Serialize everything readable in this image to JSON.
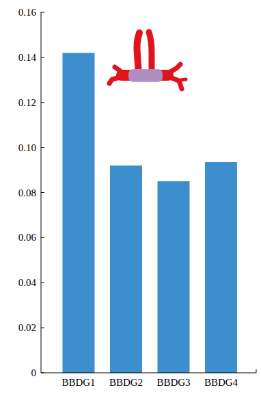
{
  "chart_data": {
    "type": "bar",
    "categories": [
      "BBDG1",
      "BBDG2",
      "BBDG3",
      "BBDG4"
    ],
    "values": [
      0.142,
      0.092,
      0.085,
      0.0935
    ],
    "color": "#3c8ecd",
    "ylim": [
      0,
      0.16
    ],
    "yticks": [
      0,
      0.02,
      0.04,
      0.06,
      0.08,
      {
        "value": 0.1,
        "label": "0.10"
      },
      0.12,
      0.14,
      0.16
    ],
    "grid": false
  }
}
